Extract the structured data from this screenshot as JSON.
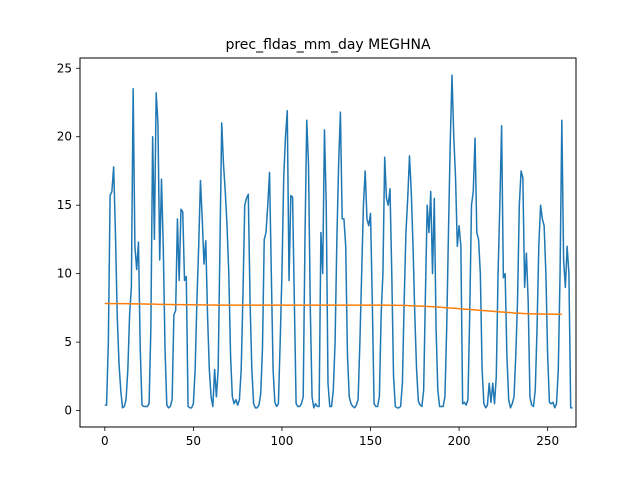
{
  "chart_data": {
    "type": "line",
    "title": "prec_fldas_mm_day MEGHNA",
    "xlabel": "",
    "ylabel": "",
    "xlim": [
      -14,
      266
    ],
    "ylim": [
      -1.2,
      25.75
    ],
    "xticks": [
      0,
      50,
      100,
      150,
      200,
      250
    ],
    "yticks": [
      0,
      5,
      10,
      15,
      20,
      25
    ],
    "grid": false,
    "colors": [
      "#1f77b4",
      "#ff7f0e"
    ],
    "series": [
      {
        "values": [
          0.4,
          0.4,
          5,
          15.7,
          16,
          17.8,
          13,
          7,
          3.5,
          1.5,
          0.2,
          0.3,
          0.8,
          3,
          7,
          9,
          23.5,
          12,
          10.3,
          12.3,
          4.5,
          0.4,
          0.3,
          0.3,
          0.3,
          0.5,
          6,
          20,
          12.5,
          23.2,
          21,
          11,
          16.9,
          12,
          4.5,
          0.4,
          0.2,
          0.3,
          0.8,
          7,
          7.3,
          14,
          9.5,
          14.7,
          14.5,
          9.5,
          9.8,
          0.3,
          0.2,
          0.2,
          0.5,
          3,
          8,
          12,
          16.8,
          14,
          10.7,
          12.4,
          7,
          3,
          1,
          0.3,
          3,
          1,
          3,
          12,
          21,
          18,
          16,
          13.5,
          10,
          4,
          1,
          0.5,
          0.8,
          0.4,
          0.8,
          3,
          8.5,
          15,
          15.5,
          15.8,
          8,
          3,
          0.5,
          0.2,
          0.2,
          0.4,
          1.2,
          4.5,
          12.5,
          13,
          15,
          17.4,
          10,
          3,
          0.6,
          0.3,
          0.5,
          5,
          10,
          17,
          20,
          21.9,
          9.5,
          15.7,
          15.6,
          8,
          0.5,
          0.3,
          0.3,
          0.5,
          1,
          12.5,
          21.2,
          18,
          7.5,
          1,
          0.2,
          0.5,
          0.3,
          0.3,
          13,
          10,
          20.5,
          15,
          2,
          0.3,
          0.3,
          1.5,
          5,
          12.5,
          18,
          21.8,
          14,
          14,
          12,
          4,
          1,
          0.5,
          0.3,
          0.2,
          0.4,
          0.8,
          5,
          10,
          15,
          17.5,
          14,
          13.5,
          14.4,
          8,
          0.5,
          0.3,
          0.3,
          1,
          7,
          10,
          18.5,
          15.5,
          15,
          16.2,
          10,
          2.5,
          0.3,
          0.2,
          0.2,
          0.3,
          2,
          8,
          13,
          15.5,
          18.6,
          16,
          12,
          7,
          3,
          0.7,
          0.4,
          0.3,
          1.5,
          8.5,
          15,
          13,
          16,
          10,
          15.5,
          6,
          1.5,
          0.3,
          0.3,
          0.3,
          1,
          6,
          13,
          19.5,
          24.5,
          20,
          17,
          12,
          13.5,
          12,
          0.5,
          0.6,
          0.4,
          0.8,
          7,
          15,
          16,
          19.9,
          13,
          12.5,
          10,
          3,
          0.5,
          0.2,
          0.4,
          2,
          0.6,
          2,
          0.5,
          2.5,
          10,
          15,
          20.8,
          9.7,
          10,
          4,
          0.8,
          0.2,
          0.5,
          1,
          4,
          8,
          15,
          17.5,
          17,
          9,
          11.5,
          8,
          1,
          0.4,
          0.3,
          1.5,
          6,
          12,
          15,
          14,
          13.5,
          10,
          4,
          0.6,
          0.5,
          0.6,
          0.2,
          0.5,
          3,
          10,
          21.2,
          11,
          9,
          12,
          10,
          0.2,
          0.2
        ]
      },
      {
        "values": [
          7.83,
          7.82,
          7.82,
          7.81,
          7.81,
          7.81,
          7.81,
          7.81,
          7.81,
          7.81,
          7.81,
          7.81,
          7.81,
          7.8,
          7.8,
          7.8,
          7.79,
          7.79,
          7.79,
          7.79,
          7.79,
          7.78,
          7.78,
          7.78,
          7.77,
          7.77,
          7.77,
          7.77,
          7.77,
          7.77,
          7.76,
          7.76,
          7.76,
          7.76,
          7.75,
          7.75,
          7.75,
          7.75,
          7.75,
          7.74,
          7.74,
          7.74,
          7.74,
          7.74,
          7.74,
          7.73,
          7.73,
          7.73,
          7.73,
          7.73,
          7.73,
          7.72,
          7.72,
          7.72,
          7.72,
          7.72,
          7.72,
          7.71,
          7.71,
          7.71,
          7.71,
          7.71,
          7.71,
          7.7,
          7.7,
          7.7,
          7.7,
          7.7,
          7.7,
          7.7,
          7.7,
          7.7,
          7.7,
          7.7,
          7.7,
          7.7,
          7.7,
          7.7,
          7.7,
          7.7,
          7.7,
          7.7,
          7.7,
          7.7,
          7.7,
          7.7,
          7.7,
          7.7,
          7.7,
          7.7,
          7.7,
          7.7,
          7.7,
          7.7,
          7.7,
          7.7,
          7.7,
          7.7,
          7.7,
          7.7,
          7.7,
          7.7,
          7.7,
          7.7,
          7.7,
          7.7,
          7.7,
          7.7,
          7.7,
          7.7,
          7.7,
          7.7,
          7.7,
          7.7,
          7.7,
          7.7,
          7.7,
          7.7,
          7.7,
          7.7,
          7.7,
          7.7,
          7.7,
          7.7,
          7.7,
          7.7,
          7.7,
          7.7,
          7.7,
          7.7,
          7.7,
          7.7,
          7.7,
          7.7,
          7.7,
          7.7,
          7.7,
          7.7,
          7.7,
          7.7,
          7.7,
          7.7,
          7.7,
          7.7,
          7.7,
          7.7,
          7.7,
          7.7,
          7.7,
          7.7,
          7.7,
          7.7,
          7.7,
          7.7,
          7.7,
          7.7,
          7.7,
          7.7,
          7.7,
          7.7,
          7.69,
          7.69,
          7.69,
          7.69,
          7.69,
          7.68,
          7.68,
          7.68,
          7.68,
          7.67,
          7.67,
          7.67,
          7.66,
          7.66,
          7.65,
          7.65,
          7.64,
          7.64,
          7.63,
          7.63,
          7.62,
          7.61,
          7.61,
          7.6,
          7.59,
          7.59,
          7.58,
          7.57,
          7.56,
          7.55,
          7.54,
          7.53,
          7.52,
          7.51,
          7.5,
          7.49,
          7.48,
          7.47,
          7.46,
          7.45,
          7.44,
          7.43,
          7.42,
          7.41,
          7.4,
          7.39,
          7.38,
          7.37,
          7.36,
          7.35,
          7.34,
          7.33,
          7.32,
          7.31,
          7.3,
          7.29,
          7.28,
          7.27,
          7.26,
          7.25,
          7.24,
          7.23,
          7.22,
          7.21,
          7.2,
          7.19,
          7.18,
          7.17,
          7.16,
          7.15,
          7.14,
          7.13,
          7.12,
          7.12,
          7.11,
          7.1,
          7.09,
          7.08,
          7.08,
          7.07,
          7.07,
          7.06,
          7.06,
          7.05,
          7.05,
          7.05,
          7.05,
          7.04,
          7.04,
          7.04,
          7.04,
          7.04,
          7.04,
          7.04,
          7.04,
          7.03,
          7.03,
          7.03,
          7.03
        ]
      }
    ]
  }
}
